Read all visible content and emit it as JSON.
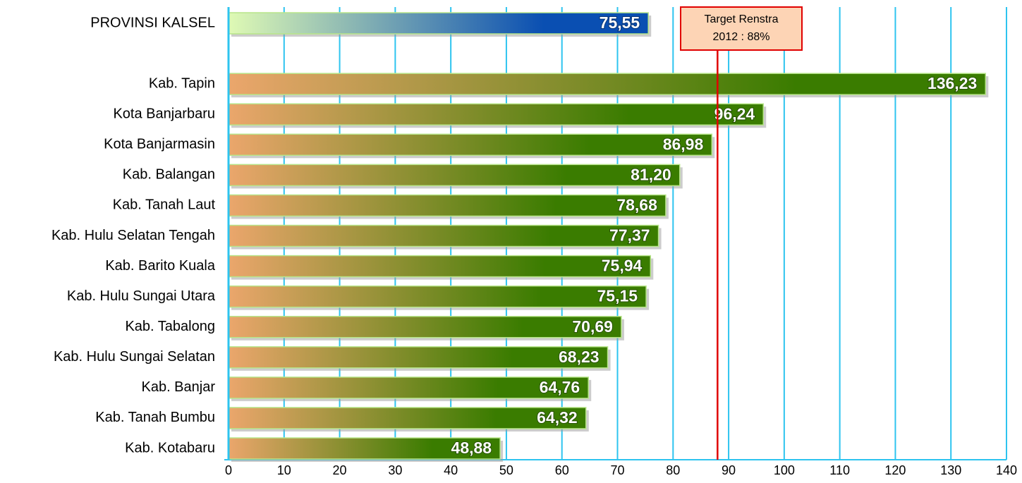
{
  "chart_data": {
    "type": "barh",
    "categories": [
      "PROVINSI KALSEL",
      null,
      "Kab. Tapin",
      "Kota Banjarbaru",
      "Kota Banjarmasin",
      "Kab. Balangan",
      "Kab. Tanah Laut",
      "Kab. Hulu Selatan Tengah",
      "Kab. Barito Kuala",
      "Kab. Hulu Sungai Utara",
      "Kab. Tabalong",
      "Kab. Hulu Sungai Selatan",
      "Kab. Banjar",
      "Kab. Tanah Bumbu",
      "Kab. Kotabaru"
    ],
    "values": [
      75.55,
      null,
      136.23,
      96.24,
      86.98,
      81.2,
      78.68,
      77.37,
      75.94,
      75.15,
      70.69,
      68.23,
      64.76,
      64.32,
      48.88
    ],
    "value_labels": [
      "75,55",
      null,
      "136,23",
      "96,24",
      "86,98",
      "81,20",
      "78,68",
      "77,37",
      "75,94",
      "75,15",
      "70,69",
      "68,23",
      "64,76",
      "64,32",
      "48,88"
    ],
    "color": [
      "#eba66c",
      "#3a7c00"
    ],
    "highlight_color": [
      "#dffab4",
      "#0a4fb2"
    ],
    "highlight_index": 0,
    "grid_color": "#2ec4ef",
    "xlim": [
      0,
      140
    ],
    "xticks": [
      0,
      10,
      20,
      30,
      40,
      50,
      60,
      70,
      80,
      90,
      100,
      110,
      120,
      130,
      140
    ],
    "grid": true,
    "annotation": {
      "text": [
        "Target Renstra",
        "2012 : 88%"
      ],
      "value": 88,
      "color": "#e00000"
    }
  }
}
